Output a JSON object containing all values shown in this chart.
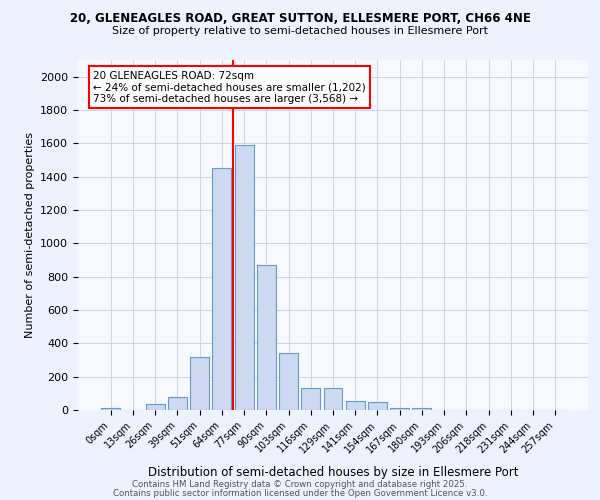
{
  "title1": "20, GLENEAGLES ROAD, GREAT SUTTON, ELLESMERE PORT, CH66 4NE",
  "title2": "Size of property relative to semi-detached houses in Ellesmere Port",
  "xlabel": "Distribution of semi-detached houses by size in Ellesmere Port",
  "ylabel": "Number of semi-detached properties",
  "footer1": "Contains HM Land Registry data © Crown copyright and database right 2025.",
  "footer2": "Contains public sector information licensed under the Open Government Licence v3.0.",
  "categories": [
    "0sqm",
    "13sqm",
    "26sqm",
    "39sqm",
    "51sqm",
    "64sqm",
    "77sqm",
    "90sqm",
    "103sqm",
    "116sqm",
    "129sqm",
    "141sqm",
    "154sqm",
    "167sqm",
    "180sqm",
    "193sqm",
    "206sqm",
    "218sqm",
    "231sqm",
    "244sqm",
    "257sqm"
  ],
  "values": [
    15,
    0,
    35,
    80,
    320,
    1450,
    1590,
    870,
    340,
    130,
    130,
    55,
    50,
    15,
    10,
    0,
    0,
    0,
    0,
    0,
    0
  ],
  "bar_color": "#ccd9f0",
  "bar_edge_color": "#6699cc",
  "reference_line_x": 6.0,
  "reference_line_color": "red",
  "annotation_text": "20 GLENEAGLES ROAD: 72sqm\n← 24% of semi-detached houses are smaller (1,202)\n73% of semi-detached houses are larger (3,568) →",
  "ylim": [
    0,
    2100
  ],
  "yticks": [
    0,
    200,
    400,
    600,
    800,
    1000,
    1200,
    1400,
    1600,
    1800,
    2000
  ],
  "bg_color": "#eef2ff",
  "plot_bg_color": "#f8f9ff",
  "grid_color": "#c8d0e8"
}
